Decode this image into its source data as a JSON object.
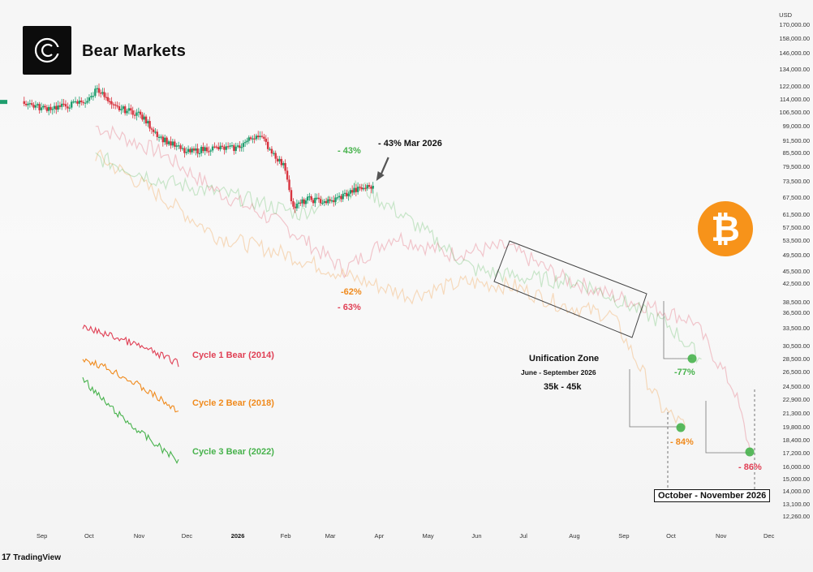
{
  "header": {
    "title": "Bear Markets"
  },
  "branding": {
    "logo_icon": "c-logo-icon",
    "tradingview_label": "TradingView",
    "tradingview_mark": "17"
  },
  "coin": {
    "symbol": "₿",
    "icon": "bitcoin-icon",
    "color": "#f7931a"
  },
  "colors": {
    "cycle1": "#e04055",
    "cycle2": "#f08a1c",
    "cycle3": "#47b24c",
    "candle_up": "#1f9e6e",
    "candle_down": "#d8343f"
  },
  "annotations": {
    "current_drawdown": "- 43%",
    "current_drawdown_label": "- 43% Mar 2026",
    "cycle2_mid": "-62%",
    "cycle1_mid": "- 63%",
    "cycle3_bottom": "-77%",
    "cycle2_bottom": "- 84%",
    "cycle1_bottom": "- 86%",
    "unification_title": "Unification Zone",
    "unification_range": "June - September 2026",
    "unification_price": "35k - 45k",
    "bottom_window": "October - November 2026"
  },
  "legend": {
    "cycle1": "Cycle 1 Bear (2014)",
    "cycle2": "Cycle 2 Bear (2018)",
    "cycle3": "Cycle 3 Bear (2022)"
  },
  "chart_data": {
    "type": "line",
    "title": "Bear Markets",
    "price_axis": {
      "unit": "USD",
      "scale": "log",
      "ticks": [
        "170,000.00",
        "158,000.00",
        "146,000.00",
        "134,000.00",
        "122,000.00",
        "114,000.00",
        "106,500.00",
        "99,000.00",
        "91,500.00",
        "85,500.00",
        "79,500.00",
        "73,500.00",
        "67,500.00",
        "61,500.00",
        "57,500.00",
        "53,500.00",
        "49,500.00",
        "45,500.00",
        "42,500.00",
        "38,500.00",
        "36,500.00",
        "33,500.00",
        "30,500.00",
        "28,500.00",
        "26,500.00",
        "24,500.00",
        "22,900.00",
        "21,300.00",
        "19,800.00",
        "18,400.00",
        "17,200.00",
        "16,000.00",
        "15,000.00",
        "14,000.00",
        "13,100.00",
        "12,260.00"
      ]
    },
    "time_axis": {
      "ticks": [
        "Sep",
        "Oct",
        "Nov",
        "Dec",
        "2026",
        "Feb",
        "Mar",
        "Apr",
        "May",
        "Jun",
        "Jul",
        "Aug",
        "Sep",
        "Oct",
        "Nov",
        "Dec"
      ]
    },
    "series": [
      {
        "name": "BTC",
        "x": [
          "2025-08-20",
          "2025-09-01",
          "2025-09-15",
          "2025-10-01",
          "2025-10-06",
          "2025-10-15",
          "2025-11-01",
          "2025-11-15",
          "2025-12-01",
          "2025-12-15",
          "2026-01-01",
          "2026-01-15",
          "2026-02-01",
          "2026-02-06",
          "2026-02-15",
          "2026-03-01",
          "2026-03-15",
          "2026-03-28"
        ],
        "y": [
          113000,
          109000,
          110000,
          114000,
          122000,
          110000,
          106000,
          93000,
          86000,
          88000,
          88000,
          95000,
          79000,
          64000,
          67000,
          66000,
          70000,
          72000
        ]
      },
      {
        "name": "Cycle 1 Bear (2014)",
        "x": [
          "2025-10-05",
          "2025-11-15",
          "2025-12-20",
          "2026-02-01",
          "2026-03-10",
          "2026-04-10",
          "2026-05-15",
          "2026-06-20",
          "2026-07-25",
          "2026-08-25",
          "2026-09-15",
          "2026-10-15",
          "2026-11-10",
          "2026-11-20"
        ],
        "y": [
          99000,
          86000,
          70000,
          58000,
          46000,
          55000,
          50000,
          52000,
          44000,
          40000,
          38000,
          35000,
          24000,
          17200
        ],
        "drawdowns": [
          "- 63%",
          "- 86%"
        ]
      },
      {
        "name": "Cycle 2 Bear (2018)",
        "x": [
          "2025-10-05",
          "2025-11-15",
          "2025-12-20",
          "2026-02-01",
          "2026-03-15",
          "2026-04-20",
          "2026-05-25",
          "2026-06-25",
          "2026-07-25",
          "2026-08-25",
          "2026-09-25",
          "2026-10-10"
        ],
        "y": [
          85000,
          68000,
          55000,
          50000,
          44000,
          40000,
          43000,
          42000,
          38000,
          36000,
          22000,
          19800
        ],
        "drawdowns": [
          "-62%",
          "- 84%"
        ]
      },
      {
        "name": "Cycle 3 Bear (2022)",
        "x": [
          "2025-10-05",
          "2025-11-15",
          "2026-01-01",
          "2026-02-10",
          "2026-03-20",
          "2026-04-25",
          "2026-05-30",
          "2026-07-01",
          "2026-08-05",
          "2026-09-05",
          "2026-09-30",
          "2026-10-20"
        ],
        "y": [
          84000,
          74000,
          68000,
          62000,
          72000,
          58000,
          46000,
          44000,
          43000,
          38000,
          34000,
          28500
        ],
        "drawdowns": [
          "- 43%",
          "-77%"
        ]
      }
    ],
    "unification_zone": {
      "label": "Unification Zone",
      "period": "June - September 2026",
      "price_range": "35k - 45k"
    },
    "bottom_window": "October - November 2026",
    "grid": false,
    "legend_position": "left"
  }
}
